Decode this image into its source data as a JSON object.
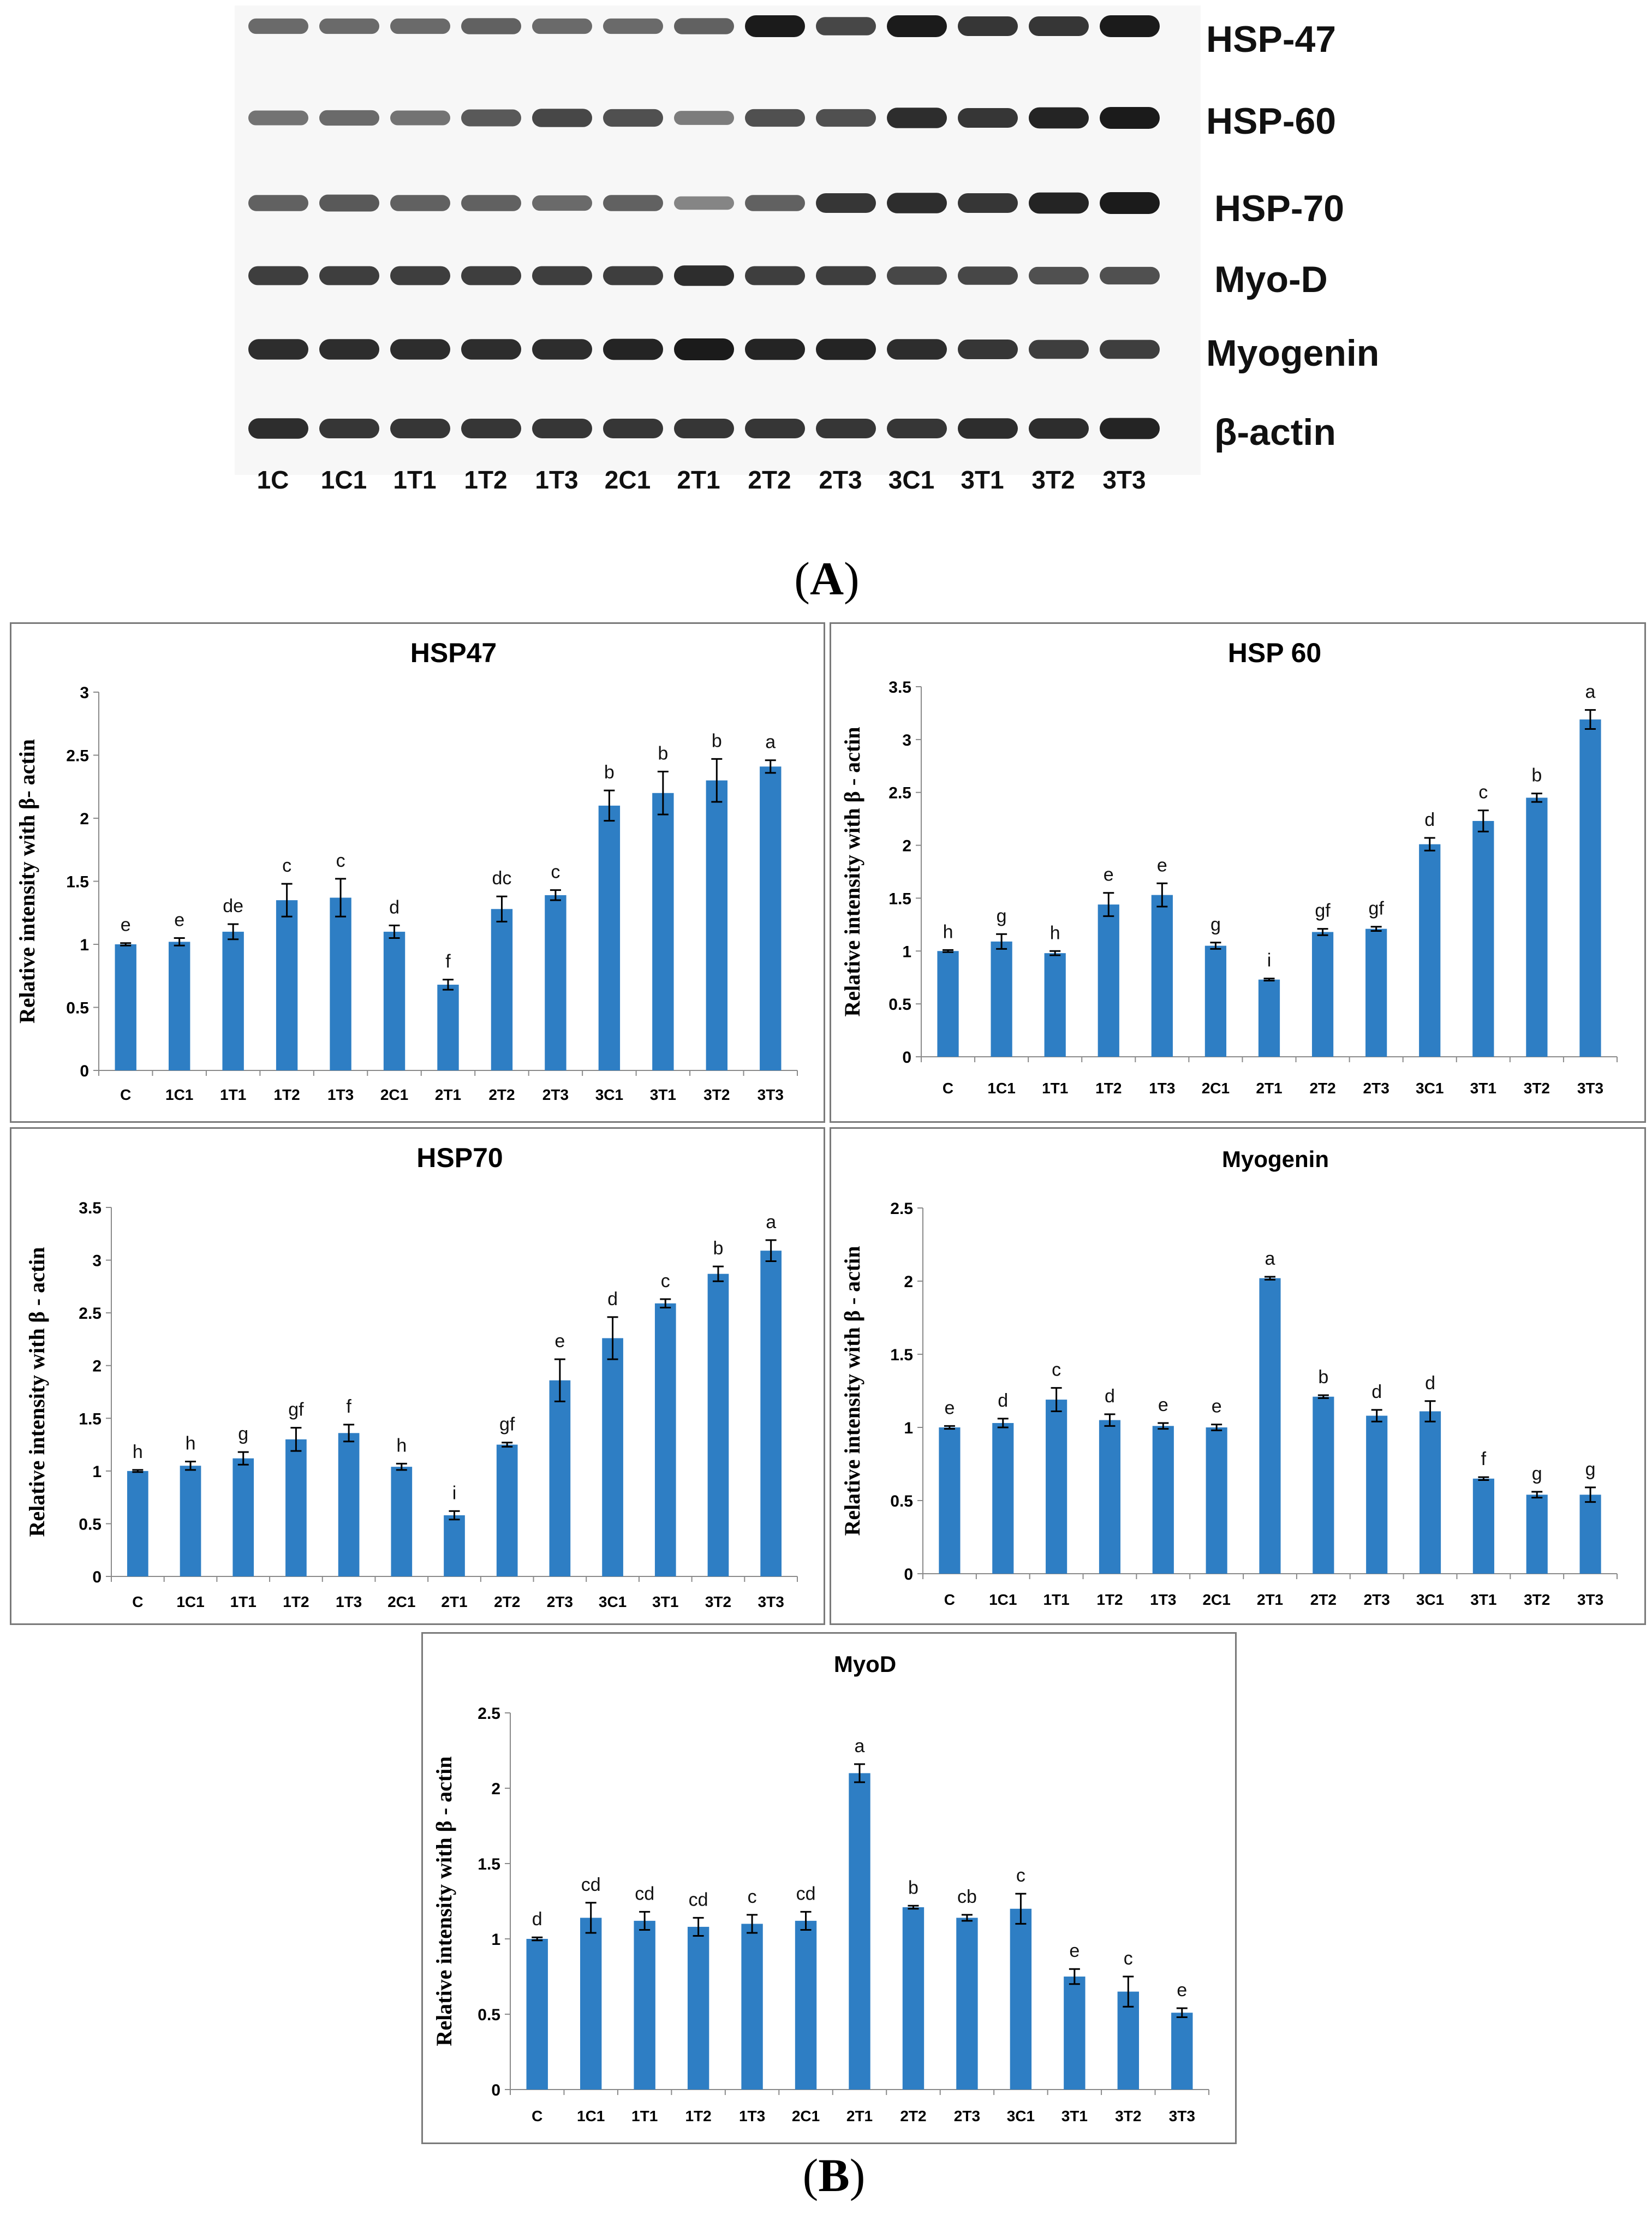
{
  "panel_labels": {
    "a": "A",
    "b": "B"
  },
  "blot": {
    "proteins": [
      "HSP-47",
      "HSP-60",
      "HSP-70",
      "Myo-D",
      "Myogenin",
      "β-actin"
    ],
    "lanes": [
      "1C",
      "1C1",
      "1T1",
      "1T2",
      "1T3",
      "2C1",
      "2T1",
      "2T2",
      "2T3",
      "3C1",
      "3T1",
      "3T2",
      "3T3"
    ],
    "band_intensity": [
      [
        0.55,
        0.55,
        0.55,
        0.6,
        0.55,
        0.55,
        0.6,
        1.0,
        0.75,
        1.0,
        0.85,
        0.85,
        1.0
      ],
      [
        0.5,
        0.55,
        0.5,
        0.65,
        0.75,
        0.7,
        0.45,
        0.7,
        0.7,
        0.9,
        0.85,
        0.95,
        1.0
      ],
      [
        0.6,
        0.65,
        0.6,
        0.6,
        0.55,
        0.6,
        0.4,
        0.6,
        0.85,
        0.9,
        0.85,
        0.95,
        1.0
      ],
      [
        0.8,
        0.8,
        0.8,
        0.8,
        0.8,
        0.8,
        0.9,
        0.8,
        0.8,
        0.75,
        0.75,
        0.7,
        0.7
      ],
      [
        0.9,
        0.9,
        0.9,
        0.9,
        0.9,
        0.95,
        1.0,
        0.95,
        0.95,
        0.9,
        0.85,
        0.8,
        0.8
      ],
      [
        0.9,
        0.85,
        0.85,
        0.85,
        0.85,
        0.85,
        0.85,
        0.85,
        0.85,
        0.85,
        0.9,
        0.9,
        0.95
      ]
    ]
  },
  "chart_data": [
    {
      "type": "bar",
      "title": "HSP47",
      "ylabel": "Relative intensity with β- actin",
      "xlabel": "",
      "categories": [
        "C",
        "1C1",
        "1T1",
        "1T2",
        "1T3",
        "2C1",
        "2T1",
        "2T2",
        "2T3",
        "3C1",
        "3T1",
        "3T2",
        "3T3"
      ],
      "values": [
        1.0,
        1.02,
        1.1,
        1.35,
        1.37,
        1.1,
        0.68,
        1.28,
        1.39,
        2.1,
        2.2,
        2.3,
        2.41
      ],
      "errors": [
        0.01,
        0.03,
        0.06,
        0.13,
        0.15,
        0.05,
        0.04,
        0.1,
        0.04,
        0.12,
        0.17,
        0.17,
        0.05
      ],
      "letters": [
        "e",
        "e",
        "de",
        "c",
        "c",
        "d",
        "f",
        "dc",
        "c",
        "b",
        "b",
        "b",
        "a"
      ],
      "yticks": [
        "0",
        "0.5",
        "1",
        "1.5",
        "2",
        "2.5",
        "3"
      ],
      "ylim": [
        0,
        3
      ],
      "color": "#2e7ec4"
    },
    {
      "type": "bar",
      "title": "HSP 60",
      "ylabel": "Relative intensity with β - actin",
      "xlabel": "",
      "categories": [
        "C",
        "1C1",
        "1T1",
        "1T2",
        "1T3",
        "2C1",
        "2T1",
        "2T2",
        "2T3",
        "3C1",
        "3T1",
        "3T2",
        "3T3"
      ],
      "values": [
        1.0,
        1.09,
        0.98,
        1.44,
        1.53,
        1.05,
        0.73,
        1.18,
        1.21,
        2.01,
        2.23,
        2.45,
        3.19
      ],
      "errors": [
        0.01,
        0.07,
        0.02,
        0.11,
        0.11,
        0.03,
        0.01,
        0.03,
        0.02,
        0.06,
        0.1,
        0.04,
        0.09
      ],
      "letters": [
        "h",
        "g",
        "h",
        "e",
        "e",
        "g",
        "i",
        "gf",
        "gf",
        "d",
        "c",
        "b",
        "a"
      ],
      "yticks": [
        "0",
        "0.5",
        "1",
        "1.5",
        "2",
        "2.5",
        "3",
        "3.5"
      ],
      "ylim": [
        0,
        3.5
      ],
      "color": "#2e7ec4"
    },
    {
      "type": "bar",
      "title": "HSP70",
      "ylabel": "Relative intensity with β - actin",
      "xlabel": "",
      "categories": [
        "C",
        "1C1",
        "1T1",
        "1T2",
        "1T3",
        "2C1",
        "2T1",
        "2T2",
        "2T3",
        "3C1",
        "3T1",
        "3T2",
        "3T3"
      ],
      "values": [
        1.0,
        1.05,
        1.12,
        1.3,
        1.36,
        1.04,
        0.58,
        1.25,
        1.86,
        2.26,
        2.59,
        2.87,
        3.09
      ],
      "errors": [
        0.01,
        0.04,
        0.06,
        0.11,
        0.08,
        0.03,
        0.04,
        0.02,
        0.2,
        0.2,
        0.04,
        0.07,
        0.1
      ],
      "letters": [
        "h",
        "h",
        "g",
        "gf",
        "f",
        "h",
        "i",
        "gf",
        "e",
        "d",
        "c",
        "b",
        "a"
      ],
      "yticks": [
        "0",
        "0.5",
        "1",
        "1.5",
        "2",
        "2.5",
        "3",
        "3.5"
      ],
      "ylim": [
        0,
        3.5
      ],
      "color": "#2e7ec4"
    },
    {
      "type": "bar",
      "title": "Myogenin",
      "ylabel": "Relative intensity with β - actin",
      "xlabel": "",
      "categories": [
        "C",
        "1C1",
        "1T1",
        "1T2",
        "1T3",
        "2C1",
        "2T1",
        "2T2",
        "2T3",
        "3C1",
        "3T1",
        "3T2",
        "3T3"
      ],
      "values": [
        1.0,
        1.03,
        1.19,
        1.05,
        1.01,
        1.0,
        2.02,
        1.21,
        1.08,
        1.11,
        0.65,
        0.54,
        0.54
      ],
      "errors": [
        0.01,
        0.03,
        0.08,
        0.04,
        0.02,
        0.02,
        0.01,
        0.01,
        0.04,
        0.07,
        0.01,
        0.02,
        0.05
      ],
      "letters": [
        "e",
        "d",
        "c",
        "d",
        "e",
        "e",
        "a",
        "b",
        "d",
        "d",
        "f",
        "g",
        "g"
      ],
      "yticks": [
        "0",
        "0.5",
        "1",
        "1.5",
        "2",
        "2.5"
      ],
      "ylim": [
        0,
        2.5
      ],
      "color": "#2e7ec4"
    },
    {
      "type": "bar",
      "title": "MyoD",
      "ylabel": "Relative intensity with β - actin",
      "xlabel": "",
      "categories": [
        "C",
        "1C1",
        "1T1",
        "1T2",
        "1T3",
        "2C1",
        "2T1",
        "2T2",
        "2T3",
        "3C1",
        "3T1",
        "3T2",
        "3T3"
      ],
      "values": [
        1.0,
        1.14,
        1.12,
        1.08,
        1.1,
        1.12,
        2.1,
        1.21,
        1.14,
        1.2,
        0.75,
        0.65,
        0.51
      ],
      "errors": [
        0.01,
        0.1,
        0.06,
        0.06,
        0.06,
        0.06,
        0.06,
        0.01,
        0.02,
        0.1,
        0.05,
        0.1,
        0.03
      ],
      "letters": [
        "d",
        "cd",
        "cd",
        "cd",
        "c",
        "cd",
        "a",
        "b",
        "cb",
        "c",
        "e",
        "c",
        "e"
      ],
      "yticks": [
        "0",
        "0.5",
        "1",
        "1.5",
        "2",
        "2.5"
      ],
      "ylim": [
        0,
        2.5
      ],
      "color": "#2e7ec4"
    }
  ]
}
